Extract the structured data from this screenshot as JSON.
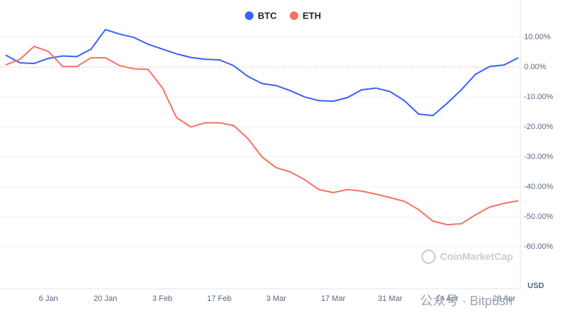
{
  "chart_data": {
    "type": "line",
    "y_label": "USD",
    "annotations": [
      "CoinMarketCap",
      "公众号 · Bitpush"
    ],
    "categories": [
      null,
      null,
      null,
      "6 Jan",
      null,
      null,
      null,
      "20 Jan",
      null,
      null,
      null,
      "3 Feb",
      null,
      null,
      null,
      "17 Feb",
      null,
      null,
      null,
      "3 Mar",
      null,
      null,
      null,
      "17 Mar",
      null,
      null,
      null,
      "31 Mar",
      null,
      null,
      null,
      "14 Apr",
      null,
      null,
      null,
      "28 Apr",
      null
    ],
    "series": [
      {
        "name": "BTC",
        "color": "#3861fb",
        "values": [
          4.0,
          1.4,
          1.2,
          2.9,
          3.7,
          3.5,
          6.0,
          12.5,
          11.0,
          9.9,
          7.6,
          6.0,
          4.4,
          3.2,
          2.6,
          2.4,
          0.5,
          -3.1,
          -5.5,
          -6.2,
          -7.9,
          -10.0,
          -11.2,
          -11.4,
          -10.2,
          -7.6,
          -7.0,
          -8.2,
          -11.2,
          -15.7,
          -16.2,
          -12.1,
          -7.6,
          -2.4,
          0.2,
          0.7,
          3.1
        ]
      },
      {
        "name": "ETH",
        "color": "#f4735e",
        "values": [
          0.7,
          2.6,
          6.9,
          5.2,
          0.2,
          0.2,
          3.1,
          3.1,
          0.5,
          -0.6,
          -0.8,
          -6.9,
          -16.9,
          -20.0,
          -18.6,
          -18.6,
          -19.5,
          -23.8,
          -30.0,
          -33.6,
          -35.0,
          -37.6,
          -40.9,
          -41.9,
          -40.9,
          -41.4,
          -42.4,
          -43.6,
          -44.8,
          -47.6,
          -51.4,
          -52.6,
          -52.3,
          -49.3,
          -46.7,
          -45.5,
          -44.6
        ]
      }
    ],
    "ylim": [
      -74,
      20
    ],
    "yticks": [
      {
        "value": 10,
        "label": "10.00%"
      },
      {
        "value": 0,
        "label": "0.00%"
      },
      {
        "value": -10,
        "label": "-10.00%"
      },
      {
        "value": -20,
        "label": "-20.00%"
      },
      {
        "value": -30,
        "label": "-30.00%"
      },
      {
        "value": -40,
        "label": "-40.00%"
      },
      {
        "value": -50,
        "label": "-50.00%"
      },
      {
        "value": -60,
        "label": "-60.00%"
      }
    ],
    "grid": true
  }
}
